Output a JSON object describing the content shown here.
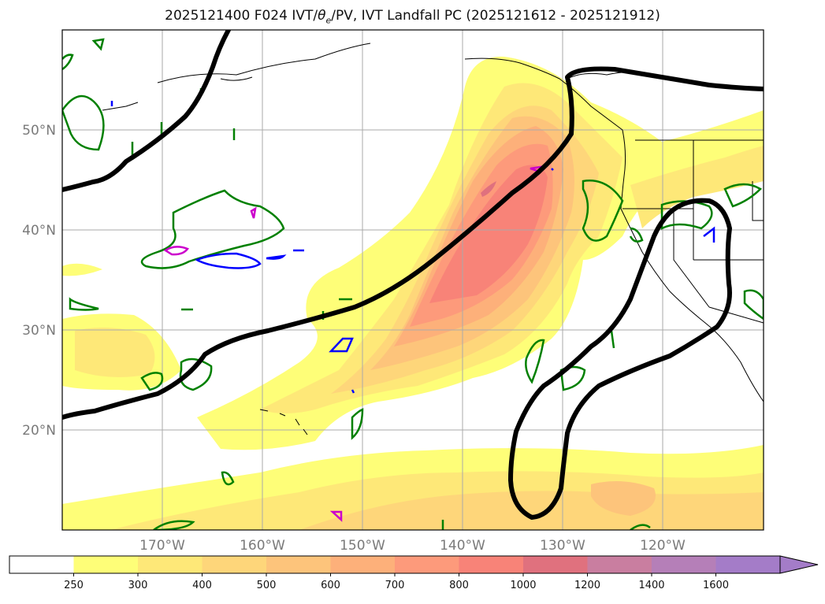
{
  "title": "2025121400 F024 IVT/θe/PV, IVT Landfall PC (2025121612 - 2025121912)",
  "title_parts": {
    "prefix": "2025121400 F024 IVT/",
    "theta": "θ",
    "theta_sub": "e",
    "suffix": "/PV, IVT Landfall PC (2025121612 - 2025121912)"
  },
  "lat_labels": [
    "50°N",
    "40°N",
    "30°N",
    "20°N"
  ],
  "lon_labels": [
    "170°W",
    "160°W",
    "150°W",
    "140°W",
    "130°W",
    "120°W"
  ],
  "colorbar": {
    "levels": [
      "250",
      "300",
      "400",
      "500",
      "600",
      "700",
      "800",
      "1000",
      "1200",
      "1400",
      "1600"
    ],
    "colors": [
      "#ffffff",
      "#fefe78",
      "#fee878",
      "#fed67a",
      "#fdc47b",
      "#fdb07a",
      "#fd9a7b",
      "#f88378",
      "#e0717e",
      "#c97ea0",
      "#b57fb8",
      "#a47cc8"
    ],
    "extend": "max"
  },
  "colors": {
    "pv_contour": "#008000",
    "theta_e_contour": "#0000ff",
    "magenta_contour": "#cc00cc",
    "landfall_pc_contour": "#000000",
    "coastline": "#000000",
    "gridline": "#aaaaaa"
  }
}
